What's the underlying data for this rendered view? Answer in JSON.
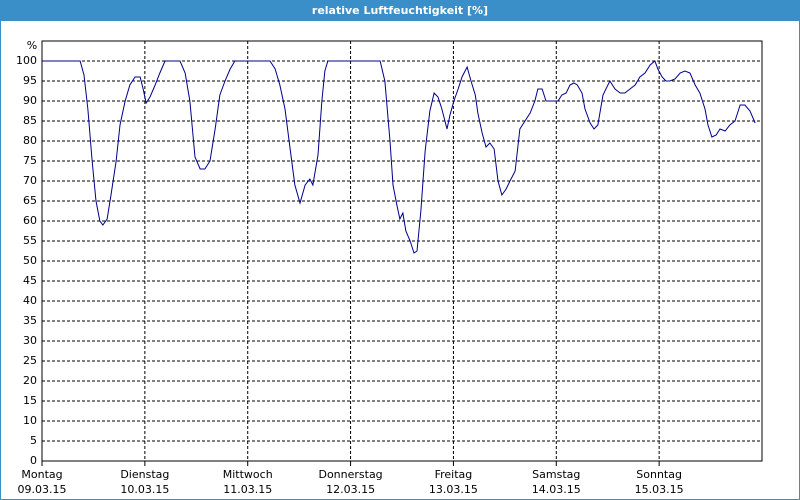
{
  "chart_data": {
    "type": "line",
    "title": "relative Luftfeuchtigkeit [%]",
    "ylabel": "%",
    "color": "#00008b",
    "grid": true,
    "xlim": [
      0,
      168
    ],
    "ylim": [
      0,
      100
    ],
    "yticks": [
      0,
      5,
      10,
      15,
      20,
      25,
      30,
      35,
      40,
      45,
      50,
      55,
      60,
      65,
      70,
      75,
      80,
      85,
      90,
      95,
      100
    ],
    "xticks": [
      {
        "value": 0,
        "label": [
          "Montag",
          "09.03.15"
        ]
      },
      {
        "value": 24,
        "label": [
          "Dienstag",
          "10.03.15"
        ]
      },
      {
        "value": 48,
        "label": [
          "Mittwoch",
          "11.03.15"
        ]
      },
      {
        "value": 72,
        "label": [
          "Donnerstag",
          "12.03.15"
        ]
      },
      {
        "value": 96,
        "label": [
          "Freitag",
          "13.03.15"
        ]
      },
      {
        "value": 120,
        "label": [
          "Samstag",
          "14.03.15"
        ]
      },
      {
        "value": 144,
        "label": [
          "Sonntag",
          "15.03.15"
        ]
      }
    ],
    "x": [
      0,
      8.9,
      9.8,
      10.7,
      11.7,
      12.6,
      13.5,
      14.2,
      15.2,
      16.1,
      17.3,
      18.2,
      19.4,
      20.5,
      21.7,
      22.9,
      23.6,
      24.3,
      25.2,
      26.4,
      27.5,
      28.7,
      32.2,
      33.4,
      34.5,
      35.7,
      36.9,
      38.0,
      39.2,
      40.4,
      41.5,
      42.7,
      43.9,
      45.0,
      53.2,
      54.4,
      55.5,
      56.7,
      57.9,
      59.0,
      60.2,
      61.4,
      62.5,
      63.2,
      64.4,
      65.3,
      66.0,
      66.7,
      78.9,
      80.0,
      81.2,
      81.9,
      82.8,
      83.5,
      84.2,
      84.9,
      85.9,
      86.8,
      87.5,
      88.4,
      89.4,
      90.5,
      91.5,
      92.4,
      93.3,
      94.5,
      95.2,
      96.1,
      97.1,
      98.0,
      99.2,
      100.1,
      101.1,
      101.7,
      102.7,
      103.6,
      104.5,
      105.5,
      106.4,
      107.3,
      108.3,
      109.2,
      110.4,
      111.5,
      112.7,
      113.9,
      115.0,
      115.7,
      116.7,
      117.6,
      118.5,
      119.5,
      120.4,
      121.3,
      122.3,
      123.2,
      124.1,
      124.9,
      126.0,
      126.7,
      127.9,
      128.8,
      129.7,
      130.9,
      132.5,
      133.7,
      134.9,
      136.0,
      137.2,
      138.4,
      139.5,
      140.7,
      141.9,
      143.0,
      143.7,
      144.7,
      145.6,
      146.5,
      147.7,
      148.9,
      150.0,
      151.2,
      152.4,
      153.5,
      154.7,
      155.4,
      156.3,
      157.3,
      158.2,
      159.4,
      160.5,
      161.7,
      162.9,
      164.0,
      165.2,
      166.4
    ],
    "values": [
      100,
      100,
      96.5,
      88,
      75,
      65,
      60,
      59,
      60.5,
      66.5,
      75,
      84,
      90,
      94,
      96,
      96,
      93,
      89.5,
      91,
      94,
      97,
      100,
      100,
      97,
      90,
      76,
      73,
      73,
      75,
      83,
      91.5,
      95,
      98,
      100,
      100,
      98,
      94,
      88,
      78,
      69,
      64.5,
      69,
      70.5,
      69,
      76.5,
      90,
      97.5,
      100,
      100,
      95,
      80,
      69,
      64,
      60.5,
      62,
      57.5,
      55,
      52,
      52.5,
      62.5,
      77.5,
      87.5,
      92,
      91,
      88,
      83,
      86.5,
      90,
      93,
      96,
      98.5,
      95,
      91.5,
      87,
      82,
      78.5,
      79.5,
      78,
      70,
      66.5,
      68,
      70,
      72.5,
      83,
      85,
      87,
      90,
      93,
      93,
      90,
      90,
      90,
      90,
      91.5,
      92,
      94,
      94.5,
      94,
      92,
      88,
      84.5,
      83,
      84,
      91.5,
      95,
      93,
      92,
      92,
      93,
      94,
      96,
      97,
      99,
      100,
      98,
      96,
      95,
      95,
      95.5,
      97,
      97.5,
      97,
      94,
      92,
      88,
      84,
      81,
      81.5,
      83,
      82.5,
      84,
      85,
      89,
      89,
      87.5,
      84.5
    ]
  }
}
